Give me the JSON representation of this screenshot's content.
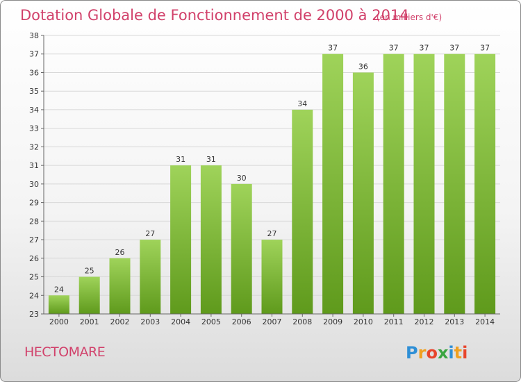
{
  "title": "Dotation Globale de Fonctionnement de 2000 à 2014",
  "subtitle": "(en milliers d'€)",
  "location": "HECTOMARE",
  "brand": {
    "text": "Proxiti",
    "letters": [
      "P",
      "r",
      "o",
      "x",
      "i",
      "t",
      "i"
    ],
    "colors": [
      "#2e8fd6",
      "#f0a020",
      "#e8452c",
      "#3aa541",
      "#2e8fd6",
      "#f0a020",
      "#e8452c"
    ]
  },
  "colors": {
    "accent": "#d1406a",
    "bar_top": "#9fd35a",
    "bar_bottom": "#5f9a1c"
  },
  "chart_data": {
    "type": "bar",
    "title": "Dotation Globale de Fonctionnement de 2000 à 2014",
    "subtitle": "(en milliers d'€)",
    "categories": [
      "2000",
      "2001",
      "2002",
      "2003",
      "2004",
      "2005",
      "2006",
      "2007",
      "2008",
      "2009",
      "2010",
      "2011",
      "2012",
      "2013",
      "2014"
    ],
    "values": [
      24,
      25,
      26,
      27,
      31,
      31,
      30,
      27,
      34,
      37,
      36,
      37,
      37,
      37,
      37
    ],
    "ylim": [
      23,
      38
    ],
    "yticks": [
      23,
      24,
      25,
      26,
      27,
      28,
      29,
      30,
      31,
      32,
      33,
      34,
      35,
      36,
      37,
      38
    ],
    "grid": true,
    "xlabel": "",
    "ylabel": ""
  }
}
